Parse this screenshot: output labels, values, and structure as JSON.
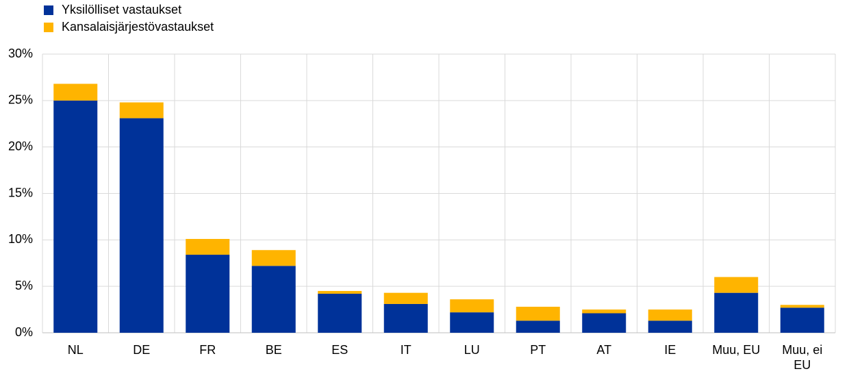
{
  "chart_data": {
    "type": "stacked_bar",
    "categories": [
      "NL",
      "DE",
      "FR",
      "BE",
      "ES",
      "IT",
      "LU",
      "PT",
      "AT",
      "IE",
      "Muu, EU",
      "Muu, ei EU"
    ],
    "series": [
      {
        "name": "Yksilölliset vastaukset",
        "color": "#003299",
        "values": [
          25.0,
          23.1,
          8.4,
          7.2,
          4.2,
          3.1,
          2.2,
          1.3,
          2.1,
          1.3,
          4.3,
          2.7
        ]
      },
      {
        "name": "Kansalaisjärjestövastaukset",
        "color": "#ffb400",
        "values": [
          1.8,
          1.7,
          1.7,
          1.7,
          0.3,
          1.2,
          1.4,
          1.5,
          0.4,
          1.2,
          1.7,
          0.3
        ]
      }
    ],
    "ylim": [
      0,
      30
    ],
    "yticks": [
      {
        "value": 0,
        "label": "0%"
      },
      {
        "value": 5,
        "label": "5%"
      },
      {
        "value": 10,
        "label": "10%"
      },
      {
        "value": 15,
        "label": "15%"
      },
      {
        "value": 20,
        "label": "20%"
      },
      {
        "value": 25,
        "label": "25%"
      },
      {
        "value": 30,
        "label": "30%"
      }
    ],
    "grid": true
  }
}
